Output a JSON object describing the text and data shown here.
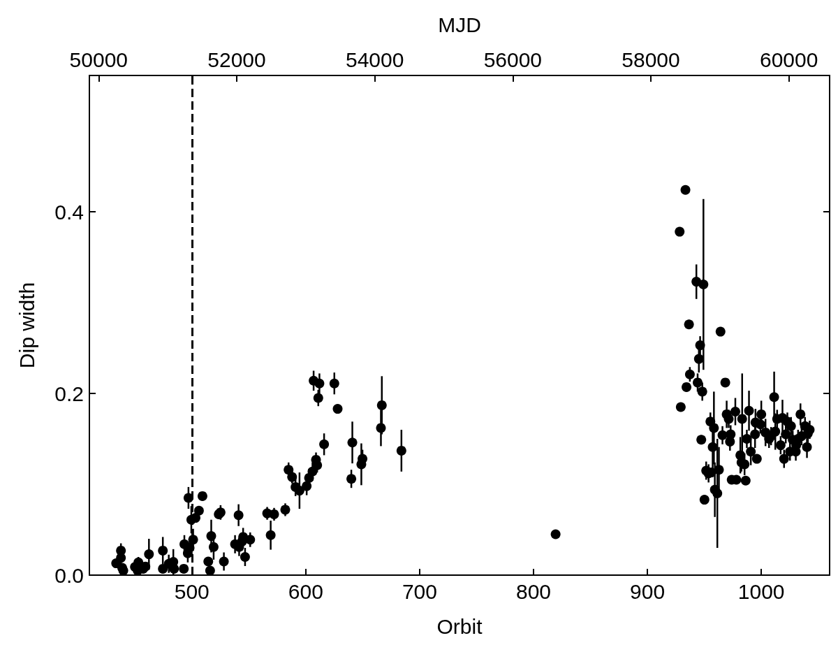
{
  "chart_data": {
    "type": "scatter",
    "xlabel": "Orbit",
    "ylabel": "Dip width",
    "x2label": "MJD",
    "xlim": [
      410,
      1060
    ],
    "xticks": [
      500,
      600,
      700,
      800,
      900,
      1000
    ],
    "x2lim": [
      49865,
      60590
    ],
    "x2ticks": [
      50000,
      52000,
      54000,
      56000,
      58000,
      60000
    ],
    "ylim": [
      0,
      0.55
    ],
    "yticks": [
      {
        "value": 0,
        "label": "0.0"
      },
      0.2,
      0.4
    ],
    "grid": false,
    "marker": "circle",
    "color": "#000000",
    "ref_lines": [
      {
        "axis": "x",
        "value": 500,
        "line_style": "dashed",
        "color": "#000000"
      }
    ],
    "x": [
      433.5,
      437.7,
      437.7,
      438.8,
      439.8,
      450,
      453,
      452.4,
      457.2,
      459.2,
      462.3,
      474.5,
      474.5,
      479.7,
      483.7,
      484.3,
      492.9,
      493.4,
      496.4,
      498,
      497,
      501.1,
      499.5,
      503.2,
      506.2,
      509.3,
      514.4,
      516,
      517,
      519.1,
      523.6,
      525.2,
      528.1,
      537.9,
      541,
      541.5,
      544,
      545,
      546.7,
      551.2,
      566.1,
      569.2,
      572.2,
      582,
      584.9,
      588,
      591,
      594.5,
      600.8,
      602.9,
      605.9,
      610,
      609,
      616.1,
      606.9,
      612,
      611,
      625.1,
      628,
      640,
      640.9,
      648.8,
      649.8,
      666,
      666.8,
      684,
      819.4,
      933.4,
      928.3,
      943,
      949.2,
      936.5,
      964.2,
      946.3,
      945.2,
      937.3,
      934.3,
      944.1,
      948.2,
      968.4,
      929.3,
      955.3,
      958.4,
      947.3,
      957.3,
      951.6,
      953.7,
      956.1,
      962.8,
      959.2,
      961.4,
      950.1,
      965.9,
      969.6,
      971.4,
      973.1,
      972.5,
      977.2,
      974,
      978.1,
      983.2,
      981.6,
      982.6,
      985.3,
      986.3,
      987.3,
      989.2,
      990.8,
      994.5,
      994.9,
      996.1,
      999.2,
      1000,
      1003.7,
      1006.8,
      1008.6,
      1011.3,
      1012.3,
      1013.9,
      1017,
      1018.6,
      1020,
      1021.5,
      1022.9,
      1026.1,
      1025.2,
      1027.6,
      1030.3,
      1030.7,
      1032.3,
      1034.4,
      1035.4,
      1038.4,
      1040.1,
      1042.5,
      1040.9
    ],
    "values": [
      0.013,
      0.027,
      0.019,
      0.008,
      0.005,
      0.009,
      0.014,
      0.005,
      0.007,
      0.0095,
      0.023,
      0.027,
      0.007,
      0.0125,
      0.0146,
      0.007,
      0.007,
      0.034,
      0.024,
      0.03,
      0.085,
      0.039,
      0.061,
      0.063,
      0.071,
      0.087,
      0.015,
      0.005,
      0.043,
      0.031,
      0.067,
      0.069,
      0.015,
      0.034,
      0.066,
      0.031,
      0.037,
      0.042,
      0.02,
      0.039,
      0.068,
      0.044,
      0.067,
      0.072,
      0.116,
      0.108,
      0.097,
      0.093,
      0.098,
      0.107,
      0.114,
      0.121,
      0.127,
      0.144,
      0.214,
      0.211,
      0.195,
      0.211,
      0.183,
      0.106,
      0.146,
      0.122,
      0.128,
      0.162,
      0.187,
      0.137,
      0.045,
      0.424,
      0.378,
      0.323,
      0.32,
      0.276,
      0.268,
      0.253,
      0.238,
      0.221,
      0.207,
      0.212,
      0.202,
      0.212,
      0.185,
      0.169,
      0.162,
      0.149,
      0.141,
      0.115,
      0.112,
      0.113,
      0.116,
      0.094,
      0.09,
      0.083,
      0.154,
      0.177,
      0.172,
      0.155,
      0.147,
      0.18,
      0.105,
      0.105,
      0.172,
      0.132,
      0.124,
      0.122,
      0.104,
      0.15,
      0.181,
      0.136,
      0.155,
      0.168,
      0.128,
      0.166,
      0.177,
      0.157,
      0.15,
      0.153,
      0.196,
      0.158,
      0.172,
      0.143,
      0.173,
      0.128,
      0.155,
      0.169,
      0.164,
      0.136,
      0.149,
      0.136,
      0.143,
      0.15,
      0.177,
      0.153,
      0.164,
      0.141,
      0.16,
      0.156
    ],
    "errors": [
      0.005,
      0.008,
      0.008,
      null,
      null,
      null,
      0.006,
      null,
      null,
      null,
      0.017,
      0.015,
      null,
      0.01,
      0.014,
      null,
      null,
      0.01,
      0.01,
      0.01,
      0.012,
      0.012,
      0.015,
      null,
      null,
      null,
      null,
      null,
      0.018,
      0.014,
      null,
      0.008,
      0.01,
      0.01,
      0.012,
      0.01,
      0.01,
      0.01,
      0.01,
      0.008,
      0.007,
      0.016,
      0.007,
      0.007,
      0.008,
      0.007,
      0.01,
      0.02,
      0.01,
      0.01,
      0.01,
      0.008,
      0.008,
      0.012,
      0.011,
      0.011,
      0.009,
      0.012,
      null,
      0.01,
      0.023,
      0.023,
      0.01,
      0.02,
      0.032,
      0.023,
      null,
      null,
      null,
      0.019,
      0.094,
      0.005,
      null,
      0.01,
      0.015,
      0.008,
      null,
      0.01,
      0.01,
      null,
      null,
      0.01,
      0.04,
      0.005,
      0.03,
      0.01,
      0.01,
      null,
      0.025,
      0.03,
      0.06,
      null,
      0.01,
      0.015,
      0.01,
      0.01,
      0.01,
      0.015,
      null,
      null,
      0.05,
      0.02,
      0.01,
      0.012,
      null,
      0.01,
      0.022,
      0.015,
      0.015,
      0.015,
      null,
      0.01,
      0.015,
      0.015,
      0.01,
      0.01,
      0.028,
      0.02,
      0.01,
      0.01,
      0.02,
      0.01,
      0.01,
      0.01,
      0.01,
      0.01,
      0.01,
      0.01,
      0.01,
      0.01,
      0.012,
      0.01,
      0.01,
      0.012,
      0.01,
      0.01
    ]
  }
}
